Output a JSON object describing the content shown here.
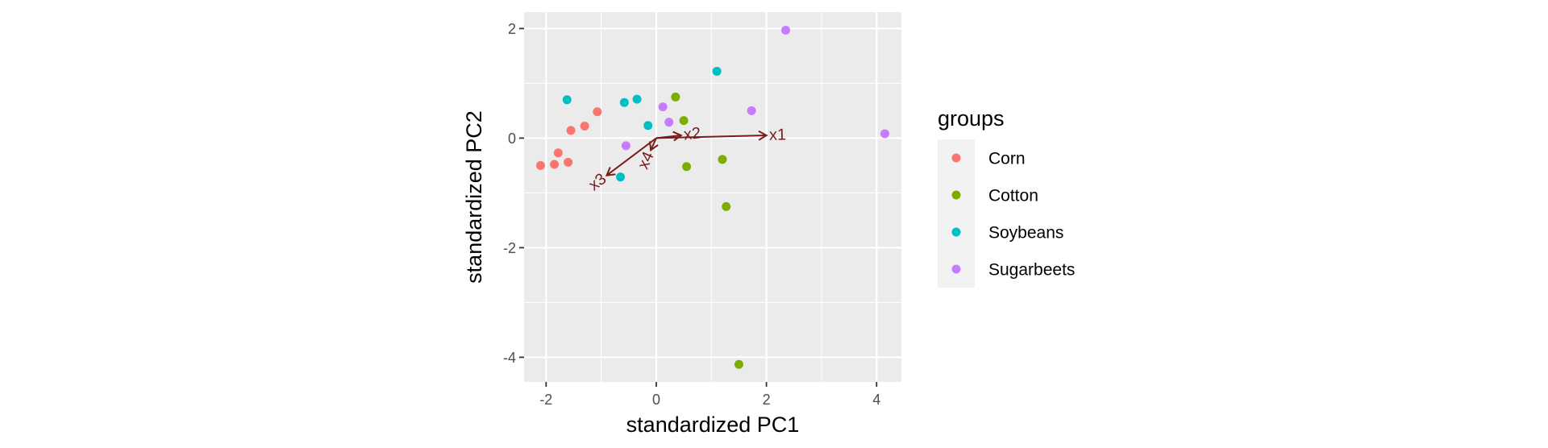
{
  "chart_data": {
    "type": "scatter",
    "xlabel": "standardized PC1",
    "ylabel": "standardized PC2",
    "xlim": [
      -2.4,
      4.45
    ],
    "ylim": [
      -4.45,
      2.3
    ],
    "x_ticks": [
      -2,
      0,
      2,
      4
    ],
    "y_ticks": [
      2,
      0,
      -2,
      -4
    ],
    "x_tick_labels": [
      "-2",
      "0",
      "2",
      "4"
    ],
    "y_tick_labels": [
      "2",
      "0",
      "-2",
      "-4"
    ],
    "grid": true,
    "legend": {
      "title": "groups",
      "position": "right"
    },
    "series": [
      {
        "name": "Corn",
        "color": "#F8766D",
        "points": [
          {
            "x": -2.1,
            "y": -0.5
          },
          {
            "x": -1.85,
            "y": -0.48
          },
          {
            "x": -1.78,
            "y": -0.27
          },
          {
            "x": -1.6,
            "y": -0.44
          },
          {
            "x": -1.55,
            "y": 0.14
          },
          {
            "x": -1.3,
            "y": 0.22
          },
          {
            "x": -1.07,
            "y": 0.48
          }
        ]
      },
      {
        "name": "Cotton",
        "color": "#7CAE00",
        "points": [
          {
            "x": 0.35,
            "y": 0.75
          },
          {
            "x": 0.5,
            "y": 0.32
          },
          {
            "x": 0.55,
            "y": -0.52
          },
          {
            "x": 1.2,
            "y": -0.39
          },
          {
            "x": 1.27,
            "y": -1.25
          },
          {
            "x": 1.5,
            "y": -4.13
          }
        ]
      },
      {
        "name": "Soybeans",
        "color": "#00BFC4",
        "points": [
          {
            "x": -1.62,
            "y": 0.7
          },
          {
            "x": -0.58,
            "y": 0.65
          },
          {
            "x": -0.35,
            "y": 0.71
          },
          {
            "x": -0.15,
            "y": 0.23
          },
          {
            "x": -0.65,
            "y": -0.71
          },
          {
            "x": 1.1,
            "y": 1.22
          }
        ]
      },
      {
        "name": "Sugarbeets",
        "color": "#C77CFF",
        "points": [
          {
            "x": 2.35,
            "y": 1.97
          },
          {
            "x": 0.12,
            "y": 0.57
          },
          {
            "x": 0.23,
            "y": 0.29
          },
          {
            "x": 1.73,
            "y": 0.5
          },
          {
            "x": -0.55,
            "y": -0.14
          },
          {
            "x": 4.15,
            "y": 0.08
          }
        ]
      }
    ],
    "arrows": [
      {
        "name": "x1",
        "x": 2.0,
        "y": 0.05
      },
      {
        "name": "x2",
        "x": 0.45,
        "y": 0.05
      },
      {
        "name": "x3",
        "x": -0.9,
        "y": -0.68
      },
      {
        "name": "x4",
        "x": -0.1,
        "y": -0.22
      }
    ],
    "arrow_color": "#7B1B1B"
  }
}
